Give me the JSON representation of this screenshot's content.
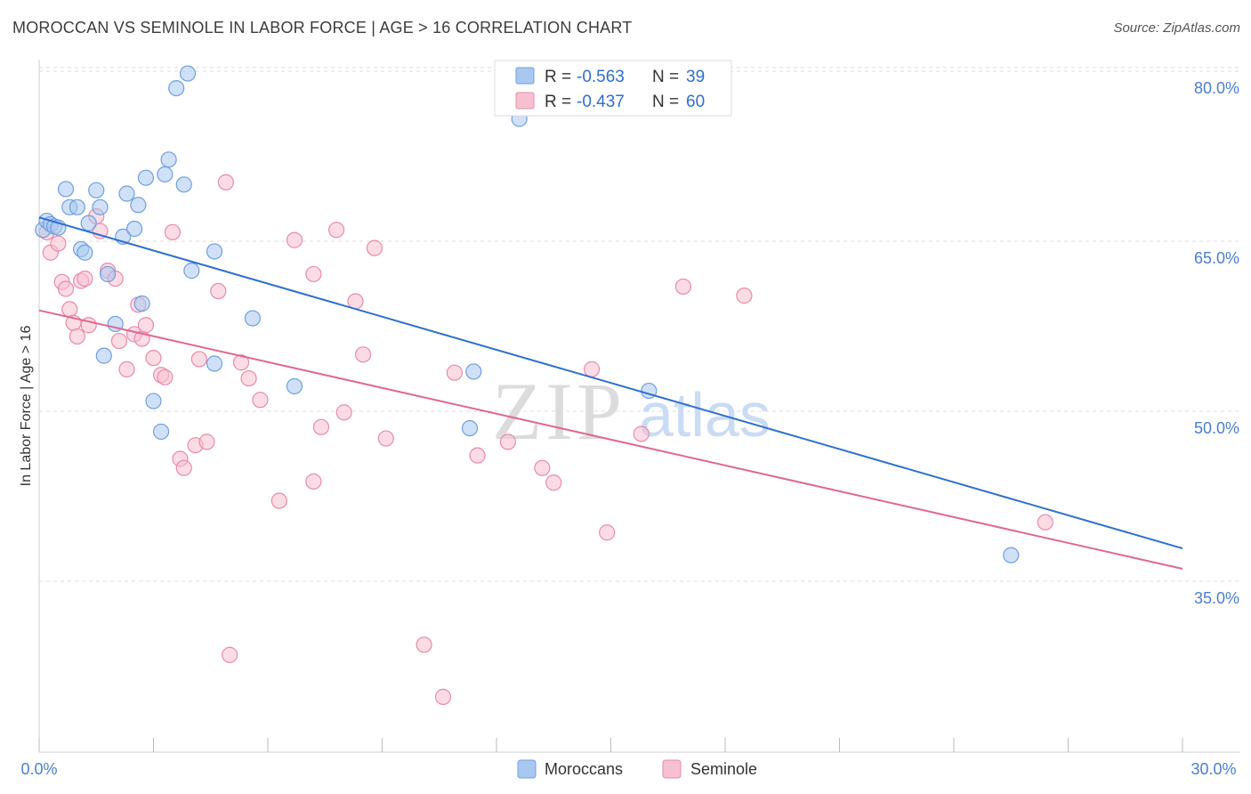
{
  "chart_data": {
    "type": "scatter",
    "title": "MOROCCAN VS SEMINOLE IN LABOR FORCE | AGE > 16 CORRELATION CHART",
    "source": "Source: ZipAtlas.com",
    "xlabel": "",
    "ylabel": "In Labor Force | Age > 16",
    "xlim": [
      0,
      30
    ],
    "ylim": [
      21,
      82
    ],
    "x_tick_labels": {
      "min": "0.0%",
      "max": "30.0%"
    },
    "y_ticks": [
      {
        "value": 35,
        "label": "35.0%"
      },
      {
        "value": 50,
        "label": "50.0%"
      },
      {
        "value": 65,
        "label": "65.0%"
      },
      {
        "value": 80,
        "label": "80.0%"
      }
    ],
    "watermark": {
      "zip": "ZIP",
      "atlas": "atlas"
    },
    "legend": {
      "rows": [
        {
          "r_label": "R =",
          "r_value": "-0.563",
          "n_label": "N =",
          "n_value": "39"
        },
        {
          "r_label": "R =",
          "r_value": "-0.437",
          "n_label": "N =",
          "n_value": "60"
        }
      ]
    },
    "colors": {
      "blue_fill": "#a9c8f0",
      "blue_stroke": "#6e9fe0",
      "blue_line": "#2f6fd0",
      "pink_fill": "#f7c0d0",
      "pink_stroke": "#e98aaa",
      "pink_line": "#e06890",
      "grid": "#dddddd",
      "axis_text": "#4a7fd0"
    },
    "series": [
      {
        "name": "Moroccans",
        "trend": {
          "x": [
            0,
            30
          ],
          "y": [
            67.1,
            37.9
          ]
        },
        "points": [
          [
            0.1,
            66.0
          ],
          [
            0.2,
            66.8
          ],
          [
            0.3,
            66.5
          ],
          [
            0.4,
            66.3
          ],
          [
            0.5,
            66.2
          ],
          [
            0.7,
            69.6
          ],
          [
            0.8,
            68.0
          ],
          [
            1.0,
            68.0
          ],
          [
            1.1,
            64.3
          ],
          [
            1.2,
            64.0
          ],
          [
            1.3,
            66.6
          ],
          [
            1.5,
            69.5
          ],
          [
            1.6,
            68.0
          ],
          [
            1.7,
            54.9
          ],
          [
            1.8,
            62.1
          ],
          [
            2.0,
            57.7
          ],
          [
            2.2,
            65.4
          ],
          [
            2.3,
            69.2
          ],
          [
            2.5,
            66.1
          ],
          [
            2.6,
            68.2
          ],
          [
            2.7,
            59.5
          ],
          [
            2.8,
            70.6
          ],
          [
            3.0,
            50.9
          ],
          [
            3.2,
            48.2
          ],
          [
            3.3,
            70.9
          ],
          [
            3.4,
            72.2
          ],
          [
            3.6,
            78.5
          ],
          [
            3.8,
            70.0
          ],
          [
            3.9,
            79.8
          ],
          [
            4.0,
            62.4
          ],
          [
            4.6,
            64.1
          ],
          [
            4.6,
            54.2
          ],
          [
            5.6,
            58.2
          ],
          [
            6.7,
            52.2
          ],
          [
            11.4,
            53.5
          ],
          [
            11.3,
            48.5
          ],
          [
            12.6,
            75.8
          ],
          [
            16.0,
            51.8
          ],
          [
            25.5,
            37.3
          ]
        ]
      },
      {
        "name": "Seminole",
        "trend": {
          "x": [
            0,
            30
          ],
          "y": [
            58.9,
            36.1
          ]
        },
        "points": [
          [
            0.2,
            65.8
          ],
          [
            0.3,
            64.0
          ],
          [
            0.5,
            64.8
          ],
          [
            0.6,
            61.4
          ],
          [
            0.7,
            60.8
          ],
          [
            0.8,
            59.0
          ],
          [
            0.9,
            57.8
          ],
          [
            1.0,
            56.6
          ],
          [
            1.1,
            61.5
          ],
          [
            1.2,
            61.7
          ],
          [
            1.3,
            57.6
          ],
          [
            1.5,
            67.2
          ],
          [
            1.6,
            65.9
          ],
          [
            1.8,
            62.4
          ],
          [
            2.0,
            61.7
          ],
          [
            2.1,
            56.2
          ],
          [
            2.3,
            53.7
          ],
          [
            2.5,
            56.8
          ],
          [
            2.6,
            59.4
          ],
          [
            2.7,
            56.4
          ],
          [
            2.8,
            57.6
          ],
          [
            3.0,
            54.7
          ],
          [
            3.2,
            53.2
          ],
          [
            3.3,
            53.0
          ],
          [
            3.5,
            65.8
          ],
          [
            3.7,
            45.8
          ],
          [
            3.8,
            45.0
          ],
          [
            4.1,
            47.0
          ],
          [
            4.2,
            54.6
          ],
          [
            4.4,
            47.3
          ],
          [
            4.7,
            60.6
          ],
          [
            4.9,
            70.2
          ],
          [
            5.0,
            28.5
          ],
          [
            5.3,
            54.3
          ],
          [
            5.5,
            52.9
          ],
          [
            5.8,
            51.0
          ],
          [
            6.3,
            42.1
          ],
          [
            6.7,
            65.1
          ],
          [
            7.2,
            43.8
          ],
          [
            7.2,
            62.1
          ],
          [
            7.4,
            48.6
          ],
          [
            7.8,
            66.0
          ],
          [
            8.0,
            49.9
          ],
          [
            8.3,
            59.7
          ],
          [
            8.5,
            55.0
          ],
          [
            8.8,
            64.4
          ],
          [
            9.1,
            47.6
          ],
          [
            10.1,
            29.4
          ],
          [
            10.6,
            24.8
          ],
          [
            10.9,
            53.4
          ],
          [
            11.5,
            46.1
          ],
          [
            12.3,
            47.3
          ],
          [
            13.2,
            45.0
          ],
          [
            13.5,
            43.7
          ],
          [
            14.5,
            53.7
          ],
          [
            14.9,
            39.3
          ],
          [
            15.8,
            48.0
          ],
          [
            16.9,
            61.0
          ],
          [
            18.5,
            60.2
          ],
          [
            26.4,
            40.2
          ]
        ]
      }
    ]
  }
}
